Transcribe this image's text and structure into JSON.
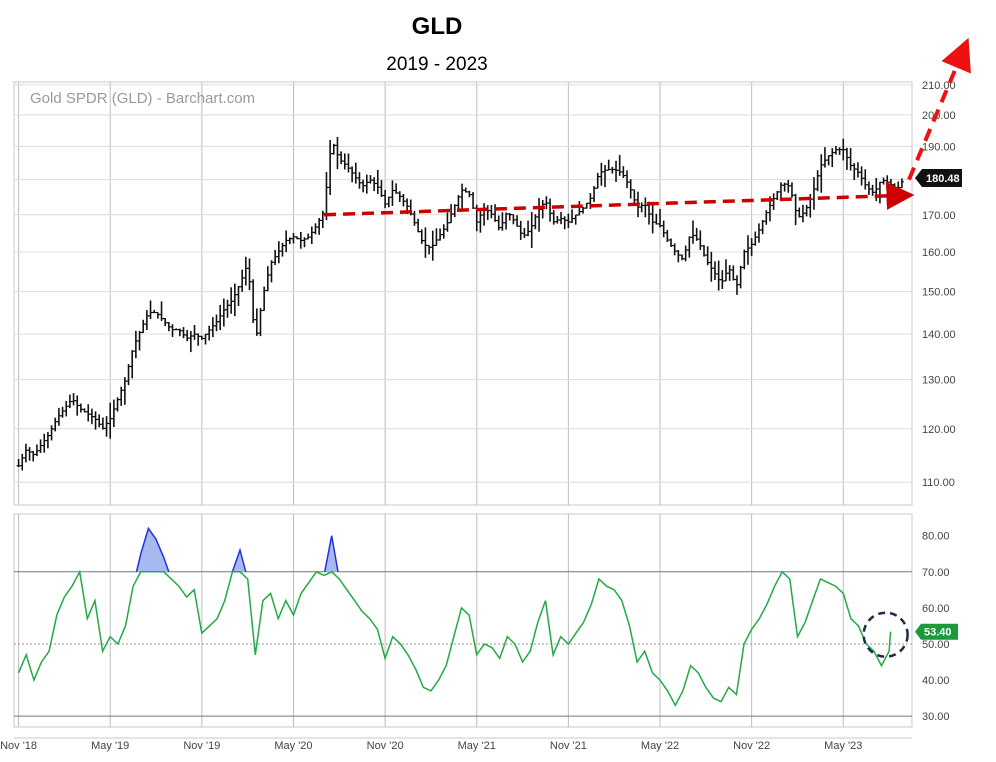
{
  "chart_data": [
    {
      "type": "ohlc",
      "title": "GLD",
      "subtitle": "2019 - 2023",
      "source_label": "Gold SPDR (GLD) - Barchart.com",
      "x_tick_labels": [
        "Nov '18",
        "May '19",
        "Nov '19",
        "May '20",
        "Nov '20",
        "May '21",
        "Nov '21",
        "May '22",
        "Nov '22",
        "May '23"
      ],
      "x_ticks_month_index": [
        0,
        6,
        12,
        18,
        24,
        30,
        36,
        42,
        48,
        54
      ],
      "x_range_months": [
        -0.3,
        58.5
      ],
      "y_tick_labels": [
        "110.00",
        "120.00",
        "130.00",
        "140.00",
        "150.00",
        "160.00",
        "170.00",
        "180.00",
        "190.00",
        "200.00",
        "210.00"
      ],
      "y_ticks": [
        110,
        120,
        130,
        140,
        150,
        160,
        170,
        180,
        190,
        200,
        210
      ],
      "y_scale": "log",
      "ylim": [
        106,
        211
      ],
      "last_price": 180.48,
      "last_price_label": "180.48",
      "price_path": [
        [
          0,
          113
        ],
        [
          0.5,
          116
        ],
        [
          1,
          115
        ],
        [
          1.5,
          117
        ],
        [
          2,
          119
        ],
        [
          2.5,
          122
        ],
        [
          3,
          124
        ],
        [
          3.5,
          126
        ],
        [
          4,
          124
        ],
        [
          4.5,
          123
        ],
        [
          5,
          122
        ],
        [
          5.5,
          120
        ],
        [
          6,
          122
        ],
        [
          6.5,
          126
        ],
        [
          7,
          130
        ],
        [
          7.5,
          137
        ],
        [
          8,
          141
        ],
        [
          8.5,
          145
        ],
        [
          9,
          145
        ],
        [
          9.5,
          143
        ],
        [
          10,
          141
        ],
        [
          10.5,
          141
        ],
        [
          11,
          139
        ],
        [
          11.5,
          140
        ],
        [
          12,
          139
        ],
        [
          12.5,
          141
        ],
        [
          13,
          143
        ],
        [
          13.5,
          146
        ],
        [
          14,
          148
        ],
        [
          14.5,
          152
        ],
        [
          15,
          157
        ],
        [
          15.5,
          138
        ],
        [
          16,
          149
        ],
        [
          16.5,
          157
        ],
        [
          17,
          160
        ],
        [
          17.5,
          163
        ],
        [
          18,
          164
        ],
        [
          18.5,
          163
        ],
        [
          19,
          164
        ],
        [
          19.5,
          167
        ],
        [
          20,
          171
        ],
        [
          20.5,
          192
        ],
        [
          21,
          186
        ],
        [
          21.5,
          184
        ],
        [
          22,
          181
        ],
        [
          22.5,
          178
        ],
        [
          23,
          180
        ],
        [
          23.5,
          178
        ],
        [
          24,
          173
        ],
        [
          24.5,
          177
        ],
        [
          25,
          175
        ],
        [
          25.5,
          172
        ],
        [
          26,
          167
        ],
        [
          26.5,
          162
        ],
        [
          27,
          161
        ],
        [
          27.5,
          164
        ],
        [
          28,
          167
        ],
        [
          28.5,
          172
        ],
        [
          29,
          177
        ],
        [
          29.5,
          176
        ],
        [
          30,
          168
        ],
        [
          30.5,
          172
        ],
        [
          31,
          170
        ],
        [
          31.5,
          166
        ],
        [
          32,
          171
        ],
        [
          32.5,
          168
        ],
        [
          33,
          164
        ],
        [
          33.5,
          166
        ],
        [
          34,
          171
        ],
        [
          34.5,
          174
        ],
        [
          35,
          168
        ],
        [
          35.5,
          169
        ],
        [
          36,
          168
        ],
        [
          36.5,
          170
        ],
        [
          37,
          172
        ],
        [
          37.5,
          175
        ],
        [
          38,
          182
        ],
        [
          38.5,
          183
        ],
        [
          39,
          183
        ],
        [
          39.5,
          182
        ],
        [
          40,
          178
        ],
        [
          40.5,
          172
        ],
        [
          41,
          173
        ],
        [
          41.5,
          168
        ],
        [
          42,
          167
        ],
        [
          42.5,
          163
        ],
        [
          43,
          160
        ],
        [
          43.5,
          158
        ],
        [
          44,
          165
        ],
        [
          44.5,
          163
        ],
        [
          45,
          158
        ],
        [
          45.5,
          155
        ],
        [
          46,
          152
        ],
        [
          46.5,
          156
        ],
        [
          47,
          151
        ],
        [
          47.5,
          160
        ],
        [
          48,
          162
        ],
        [
          48.5,
          166
        ],
        [
          49,
          171
        ],
        [
          49.5,
          175
        ],
        [
          50,
          179
        ],
        [
          50.5,
          178
        ],
        [
          51,
          169
        ],
        [
          51.5,
          171
        ],
        [
          52,
          176
        ],
        [
          52.5,
          184
        ],
        [
          53,
          187
        ],
        [
          53.5,
          189
        ],
        [
          54,
          189
        ],
        [
          54.5,
          184
        ],
        [
          55,
          182
        ],
        [
          55.5,
          178
        ],
        [
          56,
          176
        ],
        [
          56.5,
          180
        ],
        [
          57,
          179
        ],
        [
          57.5,
          177
        ],
        [
          58,
          180.48
        ]
      ],
      "trend_arrow": {
        "from": [
          20,
          170
        ],
        "to": [
          58.2,
          175.5
        ],
        "color": "#cc0000",
        "style": "dashed"
      },
      "breakout_arrow": {
        "from": [
          58.3,
          180
        ],
        "to": [
          62,
          224
        ],
        "color": "#ee1111",
        "style": "dashed"
      }
    },
    {
      "type": "line",
      "y_tick_labels": [
        "30.00",
        "40.00",
        "50.00",
        "60.00",
        "70.00",
        "80.00"
      ],
      "y_ticks": [
        30,
        40,
        50,
        60,
        70,
        80
      ],
      "ylim": [
        27,
        86
      ],
      "reference_lines": [
        30,
        50,
        70
      ],
      "overbought_level": 70,
      "last_value": 53.4,
      "last_value_label": "53.40",
      "highlighted_point": [
        57.1,
        53.4
      ],
      "series": [
        {
          "values": [
            [
              0,
              42
            ],
            [
              0.5,
              47
            ],
            [
              1,
              40
            ],
            [
              1.5,
              45
            ],
            [
              2,
              48
            ],
            [
              2.5,
              58
            ],
            [
              3,
              63
            ],
            [
              3.5,
              66
            ],
            [
              4,
              70
            ],
            [
              4.5,
              57
            ],
            [
              5,
              62
            ],
            [
              5.5,
              48
            ],
            [
              6,
              52
            ],
            [
              6.5,
              50
            ],
            [
              7,
              55
            ],
            [
              7.5,
              66
            ],
            [
              8,
              75
            ],
            [
              8.5,
              82
            ],
            [
              9,
              79
            ],
            [
              9.5,
              74
            ],
            [
              10,
              68
            ],
            [
              10.5,
              66
            ],
            [
              11,
              63
            ],
            [
              11.5,
              65
            ],
            [
              12,
              53
            ],
            [
              12.5,
              55
            ],
            [
              13,
              57
            ],
            [
              13.5,
              62
            ],
            [
              14,
              70
            ],
            [
              14.5,
              76
            ],
            [
              15,
              68
            ],
            [
              15.5,
              47
            ],
            [
              16,
              62
            ],
            [
              16.5,
              64
            ],
            [
              17,
              57
            ],
            [
              17.5,
              62
            ],
            [
              18,
              58
            ],
            [
              18.5,
              64
            ],
            [
              19,
              67
            ],
            [
              19.5,
              70
            ],
            [
              20,
              69
            ],
            [
              20.5,
              80
            ],
            [
              21,
              68
            ],
            [
              21.5,
              65
            ],
            [
              22,
              62
            ],
            [
              22.5,
              59
            ],
            [
              23,
              57
            ],
            [
              23.5,
              54
            ],
            [
              24,
              46
            ],
            [
              24.5,
              52
            ],
            [
              25,
              50
            ],
            [
              25.5,
              47
            ],
            [
              26,
              43
            ],
            [
              26.5,
              38
            ],
            [
              27,
              37
            ],
            [
              27.5,
              40
            ],
            [
              28,
              44
            ],
            [
              28.5,
              52
            ],
            [
              29,
              60
            ],
            [
              29.5,
              58
            ],
            [
              30,
              47
            ],
            [
              30.5,
              50
            ],
            [
              31,
              49
            ],
            [
              31.5,
              46
            ],
            [
              32,
              52
            ],
            [
              32.5,
              50
            ],
            [
              33,
              45
            ],
            [
              33.5,
              48
            ],
            [
              34,
              56
            ],
            [
              34.5,
              62
            ],
            [
              35,
              47
            ],
            [
              35.5,
              52
            ],
            [
              36,
              50
            ],
            [
              36.5,
              53
            ],
            [
              37,
              56
            ],
            [
              37.5,
              61
            ],
            [
              38,
              68
            ],
            [
              38.5,
              66
            ],
            [
              39,
              65
            ],
            [
              39.5,
              62
            ],
            [
              40,
              55
            ],
            [
              40.5,
              45
            ],
            [
              41,
              48
            ],
            [
              41.5,
              42
            ],
            [
              42,
              40
            ],
            [
              42.5,
              37
            ],
            [
              43,
              33
            ],
            [
              43.5,
              37
            ],
            [
              44,
              44
            ],
            [
              44.5,
              42
            ],
            [
              45,
              38
            ],
            [
              45.5,
              35
            ],
            [
              46,
              34
            ],
            [
              46.5,
              38
            ],
            [
              47,
              36
            ],
            [
              47.5,
              50
            ],
            [
              48,
              54
            ],
            [
              48.5,
              57
            ],
            [
              49,
              61
            ],
            [
              49.5,
              66
            ],
            [
              50,
              70
            ],
            [
              50.5,
              68
            ],
            [
              51,
              52
            ],
            [
              51.5,
              56
            ],
            [
              52,
              62
            ],
            [
              52.5,
              68
            ],
            [
              53,
              67
            ],
            [
              53.5,
              66
            ],
            [
              54,
              64
            ],
            [
              54.5,
              57
            ],
            [
              55,
              55
            ],
            [
              55.5,
              50
            ],
            [
              56,
              48
            ],
            [
              56.5,
              44
            ],
            [
              57,
              48
            ],
            [
              57.1,
              53.4
            ]
          ],
          "color": "#22aa44",
          "overbought_fill": "#a8b8f0",
          "overbought_line": "#2233dd"
        }
      ]
    }
  ]
}
